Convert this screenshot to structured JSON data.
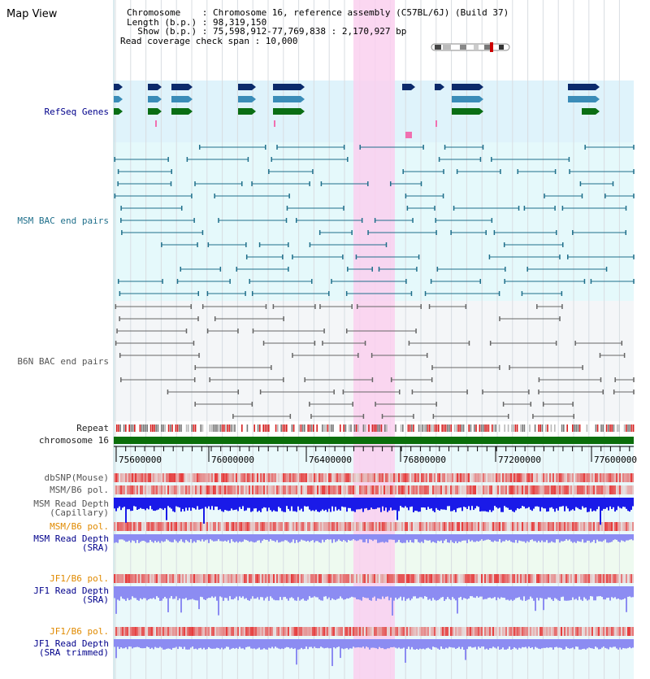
{
  "header": {
    "title": "Map View",
    "chromosome_line": "Chromosome    : Chromosome 16, reference assembly (C57BL/6J) (Build 37)",
    "length_line": "Length (b.p.) : 98,319,150",
    "show_line": "  Show (b.p.) : 75,598,912-77,769,838 : 2,170,927 bp",
    "coverage_line": "Read coverage check span : 10,000"
  },
  "tracks": {
    "refseq": "RefSeq Genes",
    "msm_bac": "MSM BAC end pairs",
    "b6n_bac": "B6N BAC end pairs",
    "repeat": "Repeat",
    "chromosome": "chromosome 16",
    "dbsnp": "dbSNP(Mouse)",
    "msm_b6_pol_1": "MSM/B6 pol.",
    "msm_depth_cap_1": "MSM Read Depth",
    "msm_depth_cap_2": "(Capillary)",
    "msm_b6_pol_2": "MSM/B6 pol.",
    "msm_depth_sra_1": "MSM Read Depth",
    "msm_depth_sra_2": "(SRA)",
    "jf1_b6_pol_1": "JF1/B6 pol.",
    "jf1_depth_sra_1": "JF1 Read Depth",
    "jf1_depth_sra_2": "(SRA)",
    "jf1_b6_pol_2": "JF1/B6 pol.",
    "jf1_depth_trim_1": "JF1 Read Depth",
    "jf1_depth_trim_2": "(SRA trimmed)"
  },
  "axis": {
    "ticks": [
      "75600000",
      "76000000",
      "76400000",
      "76800000",
      "77200000",
      "77600000"
    ]
  },
  "colors": {
    "refseq_bg": "#dff3fb",
    "msm_bg": "#e5f9fb",
    "b6n_bg": "#f4f6f8",
    "highlight": "#fad0ef",
    "gene_dark": "#0b2a6b",
    "gene_mid": "#3a8cb8",
    "gene_green": "#0a6e14",
    "msm_line": "#1f6f8b",
    "b6n_line": "#666666",
    "chromosome_bar": "#0b6e0b",
    "depth_blue": "#1a1ae8",
    "depth_light": "#8c8cf2",
    "snp_red": "#e63c3c"
  }
}
